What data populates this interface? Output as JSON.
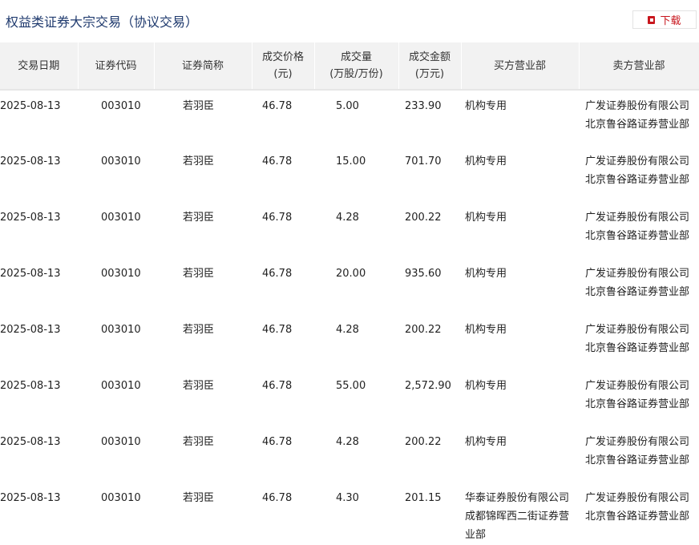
{
  "title": "权益类证券大宗交易（协议交易）",
  "download": {
    "label": "下载",
    "icon": "file-download-icon",
    "color": "#c8161d"
  },
  "columns": [
    [
      "交易日期"
    ],
    [
      "证券代码"
    ],
    [
      "证券简称"
    ],
    [
      "成交价格",
      "(元)"
    ],
    [
      "成交量",
      "(万股/万份)"
    ],
    [
      "成交金额",
      "(万元)"
    ],
    [
      "买方营业部"
    ],
    [
      "卖方营业部"
    ]
  ],
  "rows": [
    [
      "2025-08-13",
      "003010",
      "若羽臣",
      "46.78",
      "5.00",
      "233.90",
      "机构专用",
      "广发证券股份有限公司北京鲁谷路证券营业部"
    ],
    [
      "2025-08-13",
      "003010",
      "若羽臣",
      "46.78",
      "15.00",
      "701.70",
      "机构专用",
      "广发证券股份有限公司北京鲁谷路证券营业部"
    ],
    [
      "2025-08-13",
      "003010",
      "若羽臣",
      "46.78",
      "4.28",
      "200.22",
      "机构专用",
      "广发证券股份有限公司北京鲁谷路证券营业部"
    ],
    [
      "2025-08-13",
      "003010",
      "若羽臣",
      "46.78",
      "20.00",
      "935.60",
      "机构专用",
      "广发证券股份有限公司北京鲁谷路证券营业部"
    ],
    [
      "2025-08-13",
      "003010",
      "若羽臣",
      "46.78",
      "4.28",
      "200.22",
      "机构专用",
      "广发证券股份有限公司北京鲁谷路证券营业部"
    ],
    [
      "2025-08-13",
      "003010",
      "若羽臣",
      "46.78",
      "55.00",
      "2,572.90",
      "机构专用",
      "广发证券股份有限公司北京鲁谷路证券营业部"
    ],
    [
      "2025-08-13",
      "003010",
      "若羽臣",
      "46.78",
      "4.28",
      "200.22",
      "机构专用",
      "广发证券股份有限公司北京鲁谷路证券营业部"
    ],
    [
      "2025-08-13",
      "003010",
      "若羽臣",
      "46.78",
      "4.30",
      "201.15",
      "华泰证券股份有限公司成都锦晖西二街证券营业部",
      "广发证券股份有限公司北京鲁谷路证券营业部"
    ]
  ]
}
